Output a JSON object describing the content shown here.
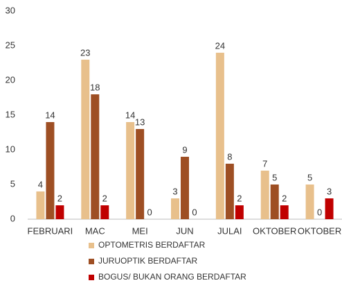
{
  "chart_data": {
    "type": "bar",
    "categories": [
      "FEBRUARI",
      "MAC",
      "MEI",
      "JUN",
      "JULAI",
      "OKTOBER",
      "OKTOBER"
    ],
    "series": [
      {
        "name": "OPTOMETRIS BERDAFTAR",
        "color": "#e8c08c",
        "values": [
          4,
          23,
          14,
          3,
          24,
          7,
          5
        ]
      },
      {
        "name": "JURUOPTIK BERDAFTAR",
        "color": "#9e4f24",
        "values": [
          14,
          18,
          13,
          9,
          8,
          5,
          0
        ]
      },
      {
        "name": "BOGUS/ BUKAN ORANG BERDAFTAR",
        "color": "#c00000",
        "values": [
          2,
          2,
          0,
          0,
          2,
          2,
          3
        ]
      }
    ],
    "ylim": [
      0,
      30
    ],
    "yticks": [
      0,
      5,
      10,
      15,
      20,
      25,
      30
    ],
    "grid": false
  }
}
